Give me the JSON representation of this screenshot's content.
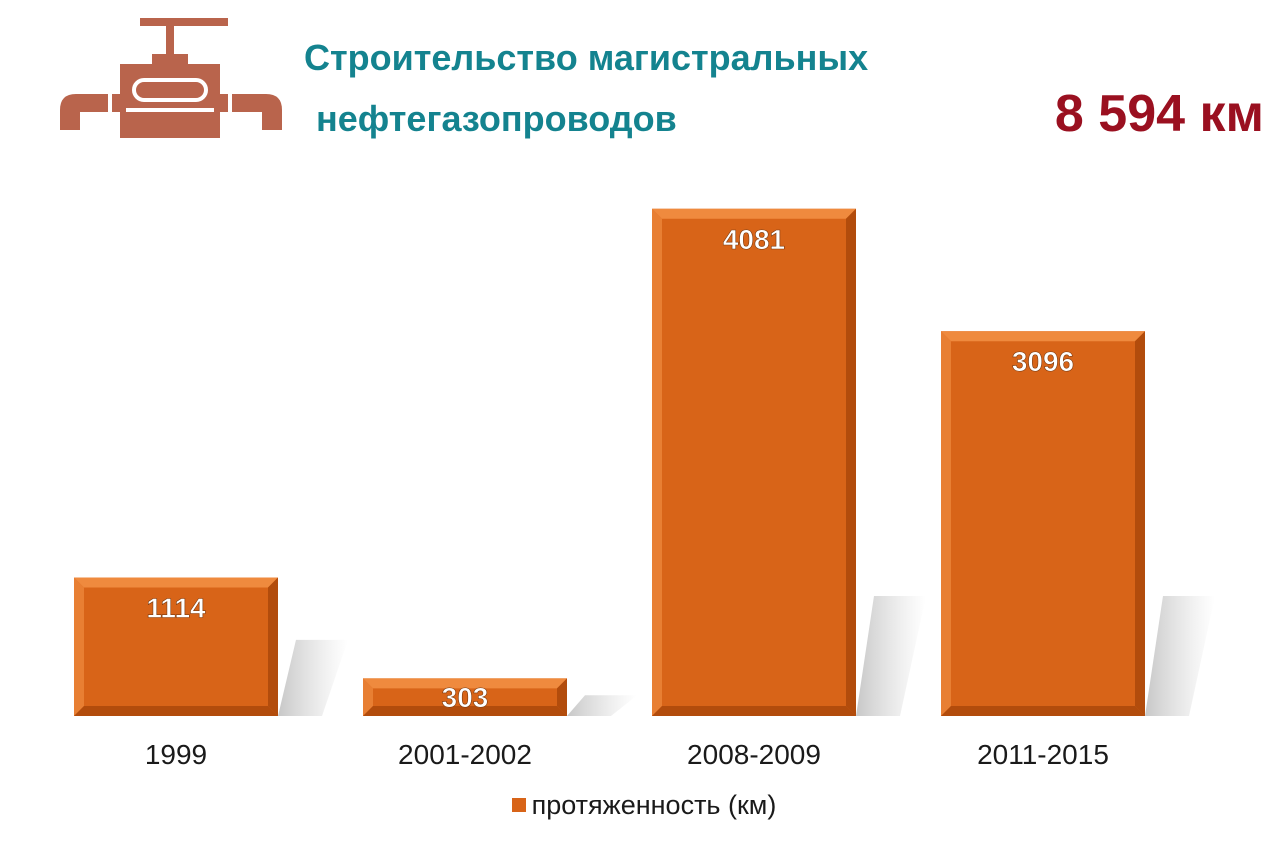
{
  "header": {
    "title_line1": "Строительство магистральных",
    "title_line2": "нефтегазопроводов",
    "total": "8 594 км"
  },
  "icons": {
    "logo": "pipe-valve-icon"
  },
  "colors": {
    "title": "#14838f",
    "total": "#9a1020",
    "icon": "#b9644c",
    "bar": "#d86418",
    "bar_dark": "#b24c0c",
    "bar_light": "#ef8a3e"
  },
  "chart_data": {
    "type": "bar",
    "style": "3d-bevel",
    "categories": [
      "1999",
      "2001-2002",
      "2008-2009",
      "2011-2015"
    ],
    "series": [
      {
        "name": "протяженность (км)",
        "values": [
          1114,
          303,
          4081,
          3096
        ]
      }
    ],
    "data_labels": [
      "1114",
      "303",
      "4081",
      "3096"
    ],
    "ylim": [
      0,
      4200
    ],
    "axis_visible": false,
    "grid": false,
    "legend": "bottom"
  }
}
